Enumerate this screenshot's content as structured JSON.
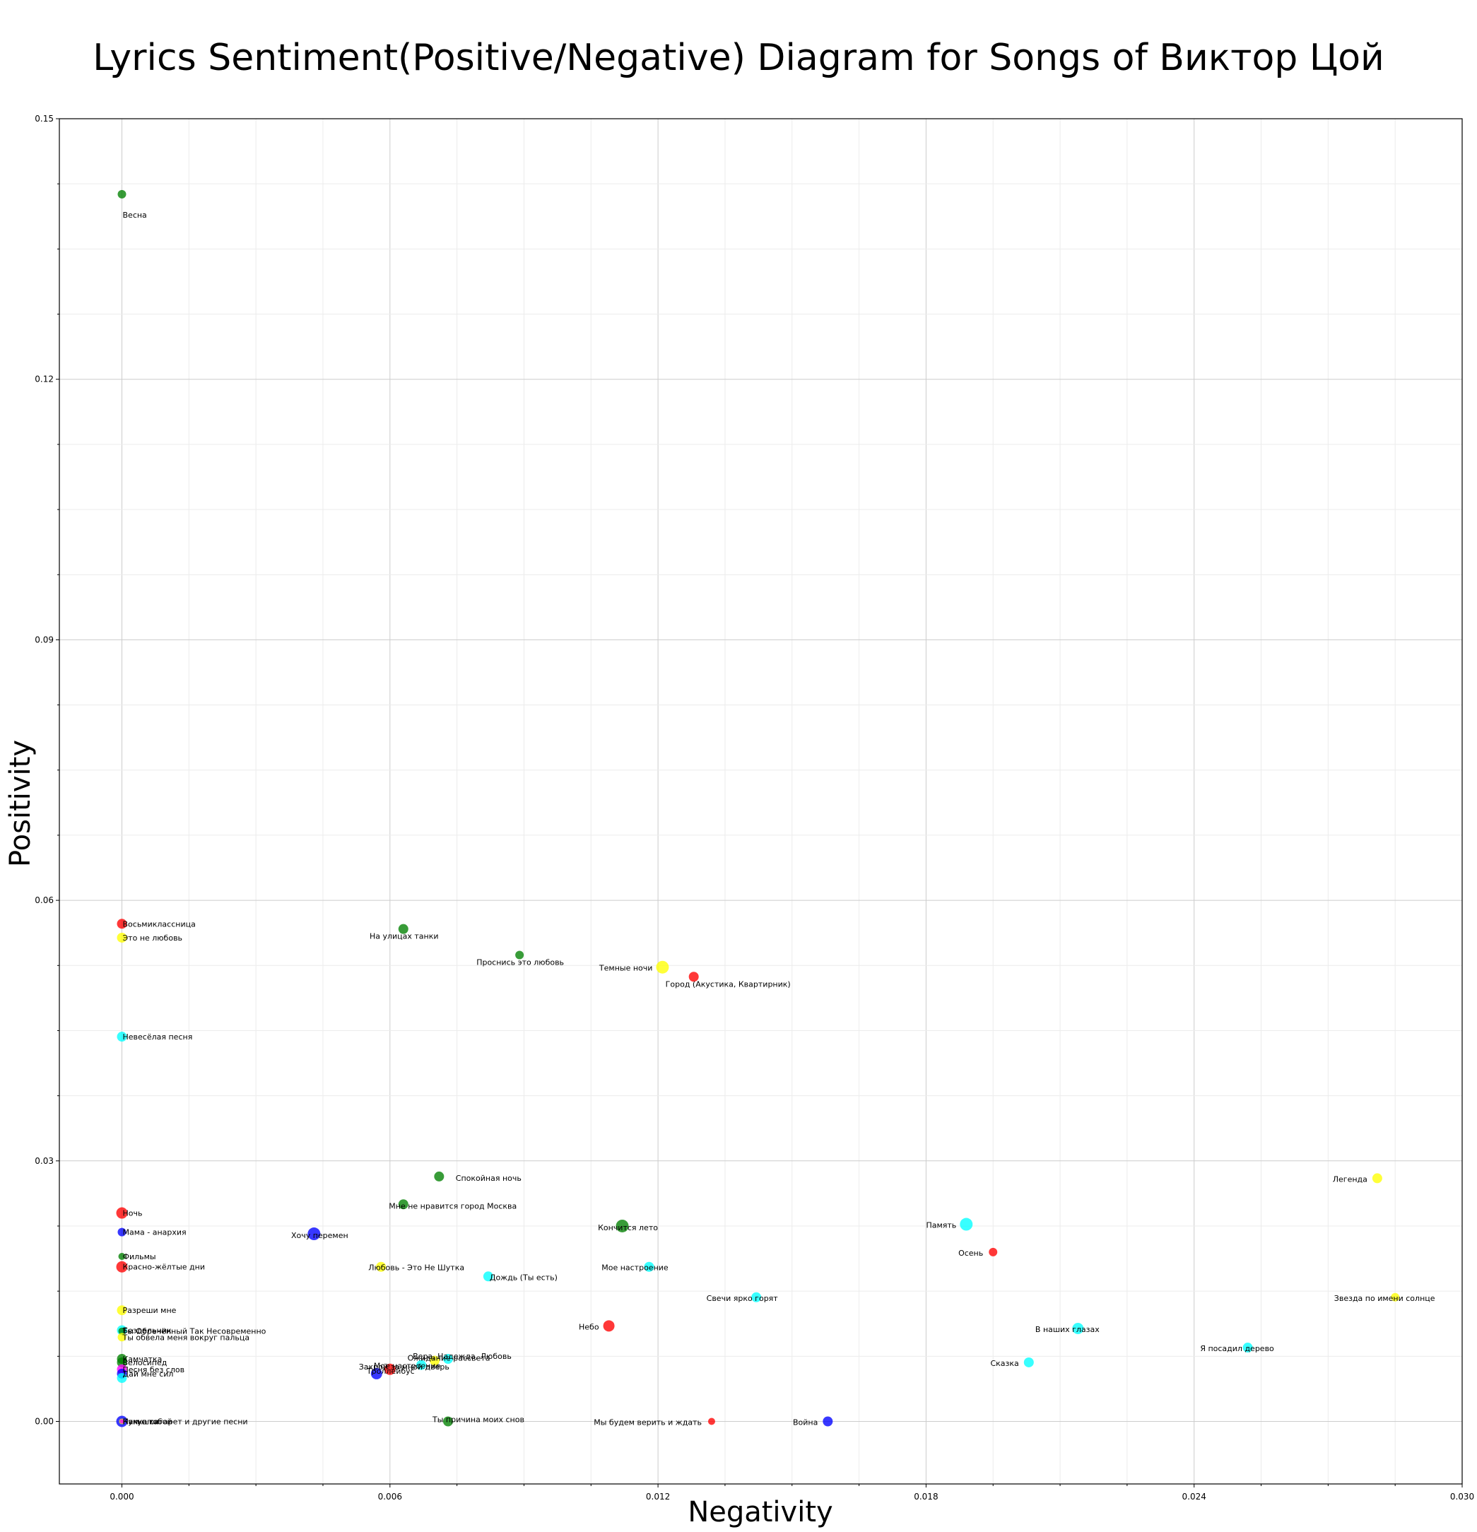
{
  "chart_data": {
    "type": "scatter",
    "title": "Lyrics Sentiment(Positive/Negative) Diagram for Songs of Виктор Цой",
    "xlabel": "Negativity",
    "ylabel": "Positivity",
    "xlim": [
      -0.0014,
      0.03
    ],
    "ylim": [
      -0.0072,
      0.15
    ],
    "xticks": [
      0.0,
      0.006,
      0.012,
      0.018,
      0.024,
      0.03
    ],
    "xtick_labels": [
      "0.000",
      "0.006",
      "0.012",
      "0.018",
      "0.024",
      "0.030"
    ],
    "yticks": [
      0.0,
      0.03,
      0.06,
      0.09,
      0.12,
      0.15
    ],
    "ytick_labels": [
      "0.00",
      "0.03",
      "0.06",
      "0.09",
      "0.12",
      "0.15"
    ],
    "grid": true,
    "points": [
      {
        "x": 0.0,
        "y": 0.1413,
        "label": "Весна",
        "color": "#008000",
        "r": 6
      },
      {
        "x": 0.0,
        "y": 0.0573,
        "label": "Восьмиклассница",
        "color": "#ff0000",
        "r": 7
      },
      {
        "x": 0.0,
        "y": 0.0557,
        "label": "Это не любовь",
        "color": "#ffff00",
        "r": 7
      },
      {
        "x": 0.0,
        "y": 0.0443,
        "label": "Невесёлая песня",
        "color": "#00ffff",
        "r": 7
      },
      {
        "x": 0.0,
        "y": 0.024,
        "label": "Ночь",
        "color": "#ff0000",
        "r": 8
      },
      {
        "x": 0.0,
        "y": 0.0218,
        "label": "Мама - анархия",
        "color": "#0000ff",
        "r": 6
      },
      {
        "x": 0.0,
        "y": 0.019,
        "label": "Фильмы",
        "color": "#008000",
        "r": 5
      },
      {
        "x": 0.0,
        "y": 0.0178,
        "label": "Красно-жёлтые дни",
        "color": "#ff0000",
        "r": 8
      },
      {
        "x": 0.0,
        "y": 0.0128,
        "label": "Разреши мне",
        "color": "#ffff00",
        "r": 7
      },
      {
        "x": 0.0,
        "y": 0.0105,
        "label": "Бездельник",
        "color": "#00ffff",
        "r": 7
      },
      {
        "x": 0.0,
        "y": 0.0104,
        "label": "Ты Обречённый Так Несовременно",
        "color": "#008000",
        "r": 5
      },
      {
        "x": 0.0,
        "y": 0.0097,
        "label": "Ты обвела меня вокруг пальца",
        "color": "#ffff00",
        "r": 6
      },
      {
        "x": 0.0,
        "y": 0.0072,
        "label": "Камчатка",
        "color": "#008000",
        "r": 7
      },
      {
        "x": 0.0,
        "y": 0.0068,
        "label": "Велосипед",
        "color": "#008000",
        "r": 7
      },
      {
        "x": 0.0,
        "y": 0.006,
        "label": "Песня без слов",
        "color": "#ff00ff",
        "r": 7
      },
      {
        "x": 0.0,
        "y": 0.0055,
        "label": "Дай мне сил",
        "color": "#0000ff",
        "r": 7
      },
      {
        "x": 0.0,
        "y": 0.005,
        "label": "",
        "color": "#00ffff",
        "r": 7
      },
      {
        "x": 0.0,
        "y": 0.0,
        "label": "Пачка сигарет и другие песни",
        "color": "#0000ff",
        "r": 8
      },
      {
        "x": 0.0,
        "y": 0.0,
        "label": "Нам с тобой",
        "color": "#ffff00",
        "r": 4
      },
      {
        "x": 0.0,
        "y": 0.0,
        "label": "Кукушка",
        "color": "#ff00ff",
        "r": 3
      },
      {
        "x": 0.0063,
        "y": 0.0567,
        "label": "На улицах танки",
        "color": "#008000",
        "r": 7
      },
      {
        "x": 0.0089,
        "y": 0.0537,
        "label": "Проснись это любовь",
        "color": "#008000",
        "r": 6
      },
      {
        "x": 0.0121,
        "y": 0.0523,
        "label": "Темные ночи",
        "color": "#ffff00",
        "r": 9
      },
      {
        "x": 0.0128,
        "y": 0.0512,
        "label": "Город (Акустика, Квартирник)",
        "color": "#ff0000",
        "r": 7
      },
      {
        "x": 0.0071,
        "y": 0.0282,
        "label": "Спокойная ночь",
        "color": "#008000",
        "r": 7
      },
      {
        "x": 0.0063,
        "y": 0.025,
        "label": "Мне не нравится город Москва",
        "color": "#008000",
        "r": 7
      },
      {
        "x": 0.0043,
        "y": 0.0216,
        "label": "Хочу перемен",
        "color": "#0000ff",
        "r": 9
      },
      {
        "x": 0.0112,
        "y": 0.0225,
        "label": "Кончится лето",
        "color": "#008000",
        "r": 9
      },
      {
        "x": 0.0058,
        "y": 0.0178,
        "label": "Любовь - Это Не Шутка",
        "color": "#ffff00",
        "r": 7
      },
      {
        "x": 0.0082,
        "y": 0.0167,
        "label": "Дождь (Ты есть)",
        "color": "#00ffff",
        "r": 7
      },
      {
        "x": 0.0118,
        "y": 0.0178,
        "label": "Мое настроение",
        "color": "#00ffff",
        "r": 7
      },
      {
        "x": 0.0142,
        "y": 0.0143,
        "label": "Свечи ярко горят",
        "color": "#00ffff",
        "r": 7
      },
      {
        "x": 0.0109,
        "y": 0.011,
        "label": "Небо",
        "color": "#ff0000",
        "r": 8
      },
      {
        "x": 0.0073,
        "y": 0.0072,
        "label": "Вера, Надежда, Любовь",
        "color": "#00ffff",
        "r": 7
      },
      {
        "x": 0.007,
        "y": 0.007,
        "label": "Ожидание рассвета",
        "color": "#ffff00",
        "r": 7
      },
      {
        "x": 0.0067,
        "y": 0.0065,
        "label": "Мое настроение",
        "color": "#00ffff",
        "r": 7
      },
      {
        "x": 0.006,
        "y": 0.006,
        "label": "Закрой за мной дверь",
        "color": "#ff0000",
        "r": 8
      },
      {
        "x": 0.0057,
        "y": 0.0055,
        "label": "Троллейбус",
        "color": "#0000ff",
        "r": 8
      },
      {
        "x": 0.0073,
        "y": 0.0,
        "label": "Ты причина моих снов",
        "color": "#008000",
        "r": 7
      },
      {
        "x": 0.0132,
        "y": 0.0,
        "label": "Мы будем верить и ждать",
        "color": "#ff0000",
        "r": 5
      },
      {
        "x": 0.0158,
        "y": 0.0,
        "label": "Война",
        "color": "#0000ff",
        "r": 7
      },
      {
        "x": 0.0189,
        "y": 0.0227,
        "label": "Память",
        "color": "#00ffff",
        "r": 9
      },
      {
        "x": 0.0195,
        "y": 0.0195,
        "label": "Осень",
        "color": "#ff0000",
        "r": 6
      },
      {
        "x": 0.0214,
        "y": 0.0107,
        "label": "В наших глазах",
        "color": "#00ffff",
        "r": 8
      },
      {
        "x": 0.0203,
        "y": 0.0068,
        "label": "Сказка",
        "color": "#00ffff",
        "r": 7
      },
      {
        "x": 0.0252,
        "y": 0.0085,
        "label": "Я посадил дерево",
        "color": "#00ffff",
        "r": 7
      },
      {
        "x": 0.0281,
        "y": 0.028,
        "label": "Легенда",
        "color": "#ffff00",
        "r": 7
      },
      {
        "x": 0.0285,
        "y": 0.0143,
        "label": "Звезда по имени солнце",
        "color": "#ffff00",
        "r": 6
      }
    ]
  }
}
